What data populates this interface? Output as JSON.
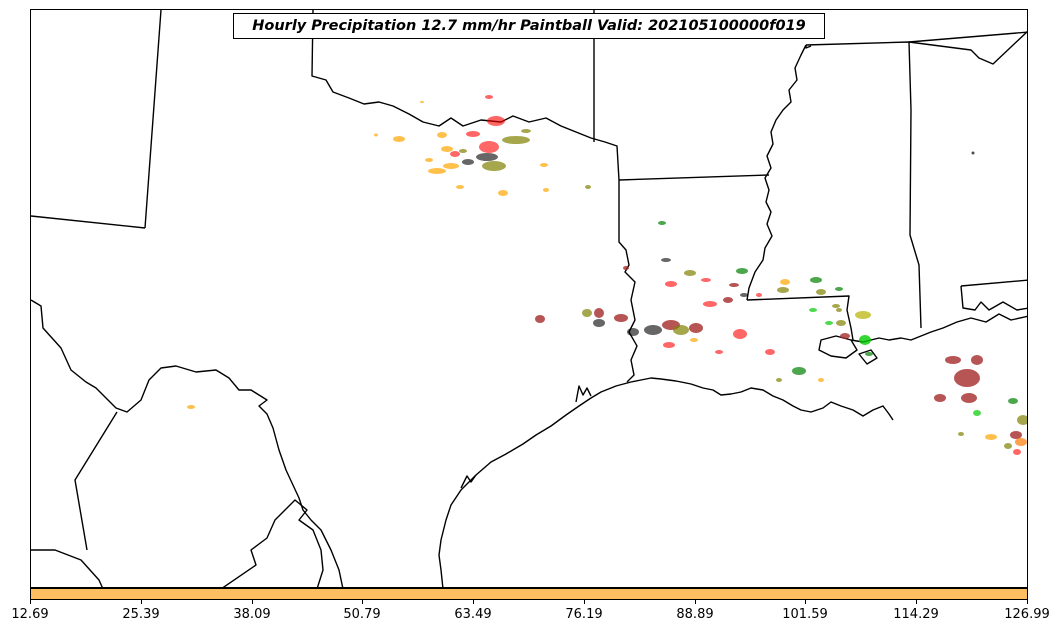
{
  "title": "Hourly Precipitation 12.7 mm/hr Paintball Valid: 202105100000f019",
  "colorbar": {
    "color": "#ffbe5f",
    "ticks": [
      "12.69",
      "25.39",
      "38.09",
      "50.79",
      "63.49",
      "76.19",
      "88.89",
      "101.59",
      "114.29",
      "126.99"
    ]
  },
  "map": {
    "boundary_color": "#000000",
    "ensemble_colors": [
      "#ff0000",
      "#ffa500",
      "#808000",
      "#000000",
      "#008000",
      "#a52a2a",
      "#00cc00",
      "#b5b000"
    ]
  }
}
